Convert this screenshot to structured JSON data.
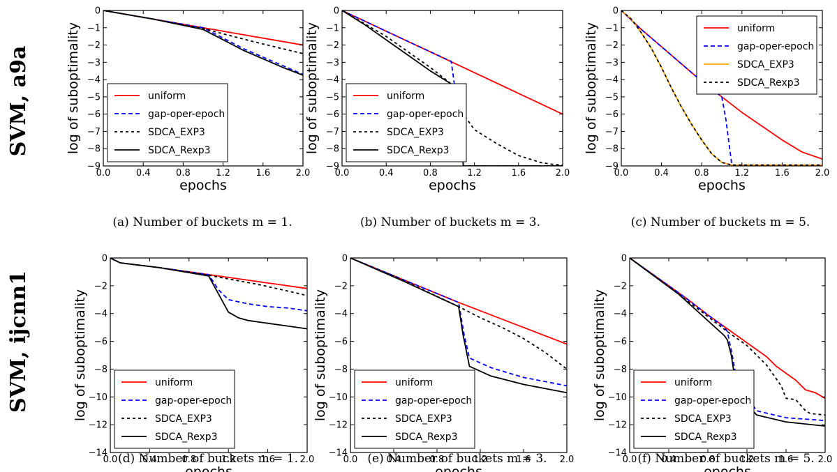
{
  "row_labels": [
    "SVM, a9a",
    "SVM, ijcnn1"
  ],
  "colors": {
    "uniform": "#ff0000",
    "gap-oper-epoch": "#0000ff",
    "SDCA_EXP3": "#000000",
    "SDCA_Rexp3": "#000000",
    "SDCA_EXP3_orange": "#ffa500"
  },
  "chart_data": [
    {
      "type": "line",
      "caption": "(a) Number of buckets m = 1.",
      "xlabel": "epochs",
      "ylabel": "log of suboptimality",
      "xlim": [
        0.0,
        2.0
      ],
      "ylim": [
        -9,
        0
      ],
      "xticks": [
        "0.0",
        "0.4",
        "0.8",
        "1.2",
        "1.6",
        "2.0"
      ],
      "yticks": [
        "0",
        "−1",
        "−2",
        "−3",
        "−4",
        "−5",
        "−6",
        "−7",
        "−8",
        "−9"
      ],
      "legend_pos": "lower-left",
      "series": [
        {
          "name": "uniform",
          "style": "solid",
          "color": "#ff0000",
          "x": [
            0,
            0.5,
            1.0,
            1.5,
            2.0
          ],
          "y": [
            0,
            -0.5,
            -1.0,
            -1.5,
            -2.0
          ]
        },
        {
          "name": "gap-oper-epoch",
          "style": "dashed",
          "color": "#0000ff",
          "x": [
            0,
            0.5,
            1.0,
            1.2,
            1.4,
            1.6,
            1.8,
            2.0
          ],
          "y": [
            0,
            -0.5,
            -1.0,
            -1.6,
            -2.2,
            -2.7,
            -3.2,
            -3.7
          ]
        },
        {
          "name": "SDCA_EXP3",
          "style": "dotted",
          "color": "#000000",
          "x": [
            0,
            0.5,
            1.0,
            1.5,
            2.0
          ],
          "y": [
            0,
            -0.5,
            -1.05,
            -1.8,
            -2.5
          ]
        },
        {
          "name": "SDCA_Rexp3",
          "style": "solid",
          "color": "#000000",
          "x": [
            0,
            0.5,
            1.0,
            1.2,
            1.4,
            1.6,
            1.8,
            2.0
          ],
          "y": [
            0,
            -0.5,
            -1.1,
            -1.7,
            -2.3,
            -2.8,
            -3.3,
            -3.75
          ]
        }
      ]
    },
    {
      "type": "line",
      "caption": "(b) Number of buckets m = 3.",
      "xlabel": "epochs",
      "ylabel": "log of suboptimality",
      "xlim": [
        0.0,
        2.0
      ],
      "ylim": [
        -9,
        0
      ],
      "xticks": [
        "0.0",
        "0.4",
        "0.8",
        "1.2",
        "1.6",
        "2.0"
      ],
      "yticks": [
        "0",
        "−1",
        "−2",
        "−3",
        "−4",
        "−5",
        "−6",
        "−7",
        "−8",
        "−9"
      ],
      "legend_pos": "lower-left",
      "series": [
        {
          "name": "uniform",
          "style": "solid",
          "color": "#ff0000",
          "x": [
            0,
            0.5,
            1.0,
            1.5,
            2.0
          ],
          "y": [
            0,
            -1.5,
            -3.0,
            -4.5,
            -6.0
          ]
        },
        {
          "name": "gap-oper-epoch",
          "style": "dashed",
          "color": "#0000ff",
          "x": [
            0,
            0.5,
            0.99,
            1.03,
            1.1,
            1.5,
            2.0
          ],
          "y": [
            0,
            -1.5,
            -2.95,
            -4.8,
            -9,
            -9,
            -9
          ]
        },
        {
          "name": "SDCA_EXP3",
          "style": "dotted",
          "color": "#000000",
          "x": [
            0,
            0.4,
            0.8,
            1.0,
            1.03,
            1.1,
            1.2,
            1.4,
            1.6,
            1.8,
            1.9,
            2.0
          ],
          "y": [
            0,
            -1.5,
            -3.3,
            -4.3,
            -4.7,
            -6.0,
            -6.9,
            -7.7,
            -8.4,
            -8.8,
            -8.9,
            -8.95
          ]
        },
        {
          "name": "SDCA_Rexp3",
          "style": "solid",
          "color": "#000000",
          "x": [
            0,
            0.2,
            0.4,
            0.6,
            0.8,
            1.0,
            1.03,
            1.1,
            1.5,
            2.0
          ],
          "y": [
            0,
            -0.8,
            -1.7,
            -2.6,
            -3.5,
            -4.3,
            -4.9,
            -9,
            -9,
            -9
          ]
        }
      ]
    },
    {
      "type": "line",
      "caption": "(c) Number of buckets m = 5.",
      "xlabel": "epochs",
      "ylabel": "log of suboptimality",
      "xlim": [
        0.0,
        2.0
      ],
      "ylim": [
        -9,
        0
      ],
      "xticks": [
        "0.0",
        "0.4",
        "0.8",
        "1.2",
        "1.6",
        "2.0"
      ],
      "yticks": [
        "0",
        "−1",
        "−2",
        "−3",
        "−4",
        "−5",
        "−6",
        "−7",
        "−8",
        "−9"
      ],
      "legend_pos": "top-right",
      "series": [
        {
          "name": "uniform",
          "style": "solid",
          "color": "#ff0000",
          "x": [
            0,
            0.2,
            0.4,
            0.6,
            0.8,
            1.0,
            1.2,
            1.4,
            1.6,
            1.8,
            2.0
          ],
          "y": [
            0,
            -1.1,
            -2.1,
            -3.1,
            -4.1,
            -5.0,
            -5.9,
            -6.7,
            -7.5,
            -8.2,
            -8.6
          ]
        },
        {
          "name": "gap-oper-epoch",
          "style": "dashed",
          "color": "#0000ff",
          "x": [
            0,
            0.2,
            0.4,
            0.6,
            0.8,
            1.0,
            1.04,
            1.1,
            1.5,
            2.0
          ],
          "y": [
            0,
            -1.1,
            -2.1,
            -3.1,
            -4.1,
            -5.0,
            -6.3,
            -8.95,
            -8.95,
            -8.95
          ]
        },
        {
          "name": "SDCA_EXP3",
          "style": "solid",
          "color": "#ffa500",
          "x": [
            0,
            0.1,
            0.2,
            0.3,
            0.4,
            0.5,
            0.6,
            0.7,
            0.8,
            0.9,
            1.0,
            1.1,
            1.5,
            2.0
          ],
          "y": [
            0,
            -0.5,
            -1.3,
            -2.2,
            -3.3,
            -4.5,
            -5.6,
            -6.6,
            -7.5,
            -8.3,
            -8.8,
            -8.95,
            -8.95,
            -8.95
          ]
        },
        {
          "name": "SDCA_Rexp3",
          "style": "dotted",
          "color": "#000000",
          "x": [
            0,
            0.1,
            0.2,
            0.3,
            0.4,
            0.5,
            0.6,
            0.7,
            0.8,
            0.9,
            1.0,
            1.1,
            1.5,
            2.0
          ],
          "y": [
            0,
            -0.5,
            -1.3,
            -2.2,
            -3.3,
            -4.5,
            -5.6,
            -6.6,
            -7.5,
            -8.3,
            -8.8,
            -8.95,
            -8.95,
            -8.95
          ]
        }
      ]
    },
    {
      "type": "line",
      "caption": "(d) Number of buckets m = 1.",
      "xlabel": "epochs",
      "ylabel": "log of suboptimality",
      "xlim": [
        0.0,
        2.0
      ],
      "ylim": [
        -14,
        0
      ],
      "xticks": [
        "0.0",
        "0.4",
        "0.8",
        "1.2",
        "1.6",
        "2.0"
      ],
      "yticks": [
        "0",
        "−2",
        "−4",
        "−6",
        "−8",
        "−10",
        "−12",
        "−14"
      ],
      "legend_pos": "lower-left",
      "series": [
        {
          "name": "uniform",
          "style": "solid",
          "color": "#ff0000",
          "x": [
            0,
            0.1,
            0.5,
            1.0,
            1.5,
            2.0
          ],
          "y": [
            0,
            -0.35,
            -0.7,
            -1.2,
            -1.7,
            -2.2
          ]
        },
        {
          "name": "gap-oper-epoch",
          "style": "dashed",
          "color": "#0000ff",
          "x": [
            0,
            0.1,
            0.5,
            1.0,
            1.1,
            1.2,
            1.4,
            1.6,
            1.8,
            2.0
          ],
          "y": [
            0,
            -0.35,
            -0.7,
            -1.2,
            -2.3,
            -3.0,
            -3.3,
            -3.5,
            -3.6,
            -3.8
          ]
        },
        {
          "name": "SDCA_EXP3",
          "style": "dotted",
          "color": "#000000",
          "x": [
            0,
            0.1,
            0.5,
            1.0,
            1.5,
            2.0
          ],
          "y": [
            0,
            -0.35,
            -0.7,
            -1.25,
            -1.9,
            -2.7
          ]
        },
        {
          "name": "SDCA_Rexp3",
          "style": "solid",
          "color": "#000000",
          "x": [
            0,
            0.1,
            0.5,
            1.0,
            1.1,
            1.2,
            1.3,
            1.4,
            1.6,
            1.8,
            2.0
          ],
          "y": [
            0,
            -0.35,
            -0.7,
            -1.3,
            -2.6,
            -3.9,
            -4.3,
            -4.5,
            -4.7,
            -4.9,
            -5.1
          ]
        }
      ]
    },
    {
      "type": "line",
      "caption": "(e) Number of buckets m = 3.",
      "xlabel": "epochs",
      "ylabel": "log of suboptimality",
      "xlim": [
        0.0,
        2.0
      ],
      "ylim": [
        -14,
        0
      ],
      "xticks": [
        "0.0",
        "0.4",
        "0.8",
        "1.2",
        "1.6",
        "2.0"
      ],
      "yticks": [
        "0",
        "−2",
        "−4",
        "−6",
        "−8",
        "−10",
        "−12",
        "−14"
      ],
      "legend_pos": "lower-left",
      "series": [
        {
          "name": "uniform",
          "style": "solid",
          "color": "#ff0000",
          "x": [
            0,
            0.5,
            1.0,
            1.5,
            2.0
          ],
          "y": [
            0,
            -1.6,
            -3.2,
            -4.7,
            -6.2
          ]
        },
        {
          "name": "gap-oper-epoch",
          "style": "dashed",
          "color": "#0000ff",
          "x": [
            0,
            0.5,
            1.0,
            1.05,
            1.1,
            1.3,
            1.6,
            2.0
          ],
          "y": [
            0,
            -1.6,
            -3.2,
            -5.5,
            -7.2,
            -7.9,
            -8.6,
            -9.2
          ]
        },
        {
          "name": "SDCA_EXP3",
          "style": "dotted",
          "color": "#000000",
          "x": [
            0,
            0.5,
            1.0,
            1.2,
            1.4,
            1.6,
            1.8,
            2.0
          ],
          "y": [
            0,
            -1.65,
            -3.5,
            -4.3,
            -5.0,
            -5.8,
            -6.8,
            -8.0
          ]
        },
        {
          "name": "SDCA_Rexp3",
          "style": "solid",
          "color": "#000000",
          "x": [
            0,
            0.5,
            1.0,
            1.04,
            1.1,
            1.3,
            1.6,
            2.0
          ],
          "y": [
            0,
            -1.7,
            -3.5,
            -5.5,
            -7.8,
            -8.5,
            -9.1,
            -9.7
          ]
        }
      ]
    },
    {
      "type": "line",
      "caption": "(f) Number of buckets m = 5.",
      "xlabel": "epochs",
      "ylabel": "log of suboptimality",
      "xlim": [
        0.0,
        2.0
      ],
      "ylim": [
        -14,
        0
      ],
      "xticks": [
        "0.0",
        "0.4",
        "0.8",
        "1.2",
        "1.6",
        "2.0"
      ],
      "yticks": [
        "0",
        "−2",
        "−4",
        "−6",
        "−8",
        "−10",
        "−12",
        "−14"
      ],
      "legend_pos": "lower-left",
      "series": [
        {
          "name": "uniform",
          "style": "solid",
          "color": "#ff0000",
          "x": [
            0,
            0.2,
            0.4,
            0.6,
            0.8,
            1.0,
            1.2,
            1.4,
            1.5,
            1.6,
            1.7,
            1.8,
            1.9,
            2.0
          ],
          "y": [
            0,
            -1.0,
            -2.0,
            -3.0,
            -4.1,
            -5.1,
            -6.1,
            -7.1,
            -7.8,
            -8.3,
            -8.8,
            -9.5,
            -9.7,
            -10.1
          ]
        },
        {
          "name": "gap-oper-epoch",
          "style": "dashed",
          "color": "#0000ff",
          "x": [
            0,
            0.5,
            0.97,
            1.0,
            1.05,
            1.1,
            1.3,
            1.6,
            2.0
          ],
          "y": [
            0,
            -2.5,
            -5.0,
            -5.3,
            -7.0,
            -9.0,
            -11.0,
            -11.5,
            -11.7
          ]
        },
        {
          "name": "SDCA_EXP3",
          "style": "dotted",
          "color": "#000000",
          "x": [
            0,
            0.5,
            1.0,
            1.2,
            1.4,
            1.55,
            1.6,
            1.7,
            1.8,
            1.85,
            2.0
          ],
          "y": [
            0,
            -2.6,
            -5.3,
            -6.3,
            -7.7,
            -9.2,
            -10.1,
            -10.2,
            -11.0,
            -11.2,
            -11.3
          ]
        },
        {
          "name": "SDCA_Rexp3",
          "style": "solid",
          "color": "#000000",
          "x": [
            0,
            0.5,
            0.97,
            1.0,
            1.04,
            1.1,
            1.3,
            1.6,
            2.0
          ],
          "y": [
            0,
            -2.6,
            -5.6,
            -5.9,
            -7.0,
            -9.8,
            -11.3,
            -11.8,
            -12.1
          ]
        }
      ]
    }
  ]
}
